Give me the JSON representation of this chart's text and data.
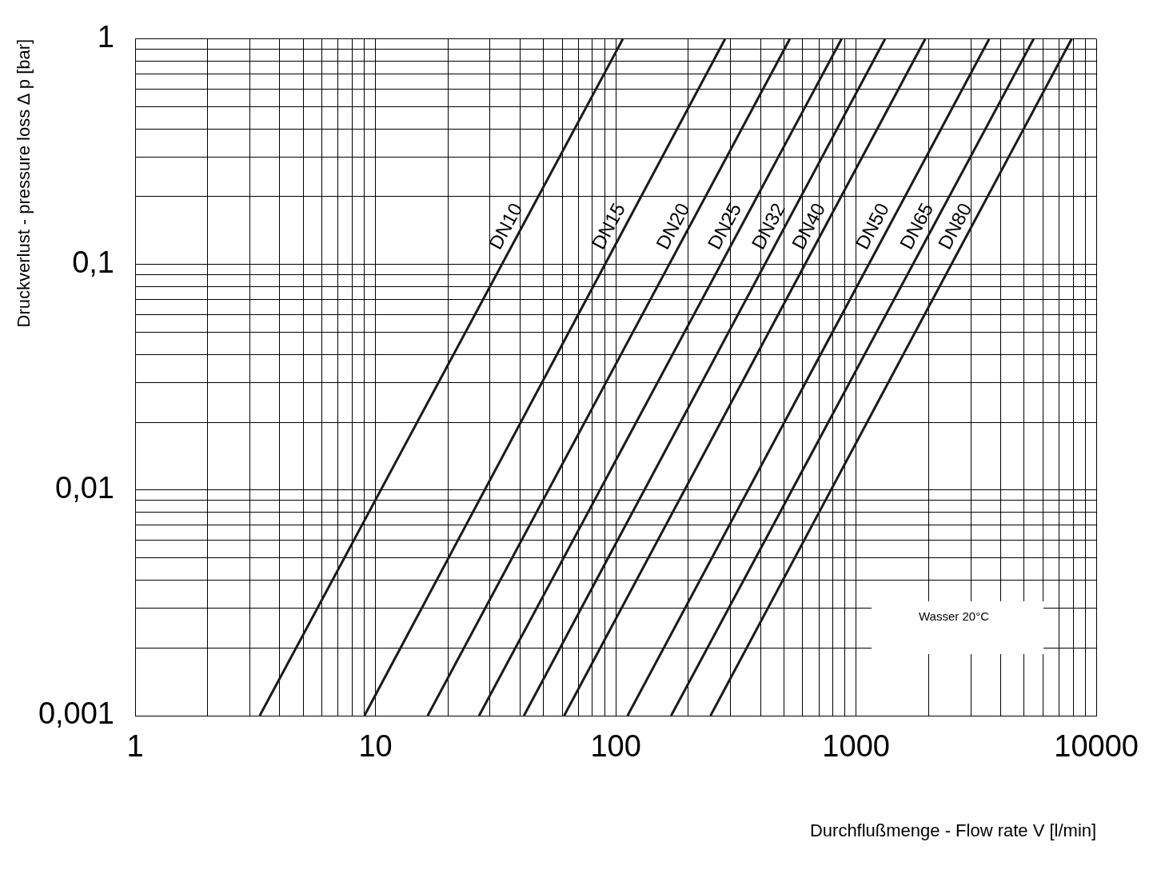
{
  "chart_data": {
    "type": "line",
    "xlabel": "Durchflußmenge - Flow rate V [l/min]",
    "ylabel": "Druckverlust - pressure loss ∆ p [bar]",
    "log": "xy",
    "grid": true,
    "line_style": "solid",
    "xlim": [
      1,
      10000
    ],
    "ylim": [
      0.001,
      1
    ],
    "xticks": [
      1,
      {
        "value": 2,
        "label": null
      },
      {
        "value": 3,
        "label": null
      },
      {
        "value": 4,
        "label": null
      },
      {
        "value": 5,
        "label": null
      },
      {
        "value": 6,
        "label": null
      },
      {
        "value": 7,
        "label": null
      },
      {
        "value": 8,
        "label": null
      },
      {
        "value": 9,
        "label": null
      },
      10,
      {
        "value": 20,
        "label": null
      },
      {
        "value": 30,
        "label": null
      },
      {
        "value": 40,
        "label": null
      },
      {
        "value": 50,
        "label": null
      },
      {
        "value": 60,
        "label": null
      },
      {
        "value": 70,
        "label": null
      },
      {
        "value": 80,
        "label": null
      },
      {
        "value": 90,
        "label": null
      },
      100,
      {
        "value": 200,
        "label": null
      },
      {
        "value": 300,
        "label": null
      },
      {
        "value": 400,
        "label": null
      },
      {
        "value": 500,
        "label": null
      },
      {
        "value": 600,
        "label": null
      },
      {
        "value": 700,
        "label": null
      },
      {
        "value": 800,
        "label": null
      },
      {
        "value": 900,
        "label": null
      },
      1000,
      {
        "value": 2000,
        "label": null
      },
      {
        "value": 3000,
        "label": null
      },
      {
        "value": 4000,
        "label": null
      },
      {
        "value": 5000,
        "label": null
      },
      {
        "value": 6000,
        "label": null
      },
      {
        "value": 7000,
        "label": null
      },
      {
        "value": 8000,
        "label": null
      },
      {
        "value": 9000,
        "label": null
      },
      10000
    ],
    "yticks": [
      {
        "value": 0.001,
        "label": "0,001"
      },
      {
        "value": 0.002,
        "label": null
      },
      {
        "value": 0.003,
        "label": null
      },
      {
        "value": 0.004,
        "label": null
      },
      {
        "value": 0.005,
        "label": null
      },
      {
        "value": 0.006,
        "label": null
      },
      {
        "value": 0.007,
        "label": null
      },
      {
        "value": 0.008,
        "label": null
      },
      {
        "value": 0.009,
        "label": null
      },
      {
        "value": 0.01,
        "label": "0,01"
      },
      {
        "value": 0.02,
        "label": null
      },
      {
        "value": 0.03,
        "label": null
      },
      {
        "value": 0.04,
        "label": null
      },
      {
        "value": 0.05,
        "label": null
      },
      {
        "value": 0.06,
        "label": null
      },
      {
        "value": 0.07,
        "label": null
      },
      {
        "value": 0.08,
        "label": null
      },
      {
        "value": 0.09,
        "label": null
      },
      {
        "value": 0.1,
        "label": "0,1"
      },
      {
        "value": 0.2,
        "label": null
      },
      {
        "value": 0.3,
        "label": null
      },
      {
        "value": 0.4,
        "label": null
      },
      {
        "value": 0.5,
        "label": null
      },
      {
        "value": 0.6,
        "label": null
      },
      {
        "value": 0.7,
        "label": null
      },
      {
        "value": 0.8,
        "label": null
      },
      {
        "value": 0.9,
        "label": null
      },
      1
    ],
    "annotations": [
      "Wasser 20°C"
    ],
    "series": [
      {
        "name": "DN10",
        "color": "#1a1a1a",
        "x": [
          3.3,
          107
        ],
        "values": [
          0.001,
          1
        ]
      },
      {
        "name": "DN15",
        "color": "#1a1a1a",
        "x": [
          9.0,
          285
        ],
        "values": [
          0.001,
          1
        ]
      },
      {
        "name": "DN20",
        "color": "#1a1a1a",
        "x": [
          16.5,
          530
        ],
        "values": [
          0.001,
          1
        ]
      },
      {
        "name": "DN25",
        "color": "#1a1a1a",
        "x": [
          27,
          870
        ],
        "values": [
          0.001,
          1
        ]
      },
      {
        "name": "DN32",
        "color": "#1a1a1a",
        "x": [
          41.5,
          1320
        ],
        "values": [
          0.001,
          1
        ]
      },
      {
        "name": "DN40",
        "color": "#1a1a1a",
        "x": [
          61,
          1940
        ],
        "values": [
          0.001,
          1
        ]
      },
      {
        "name": "DN50",
        "color": "#1a1a1a",
        "x": [
          112,
          3580
        ],
        "values": [
          0.001,
          1
        ]
      },
      {
        "name": "DN65",
        "color": "#1a1a1a",
        "x": [
          170,
          5480
        ],
        "values": [
          0.001,
          1
        ]
      },
      {
        "name": "DN80",
        "color": "#1a1a1a",
        "x": [
          248,
          7890
        ],
        "values": [
          0.001,
          1
        ]
      }
    ]
  }
}
